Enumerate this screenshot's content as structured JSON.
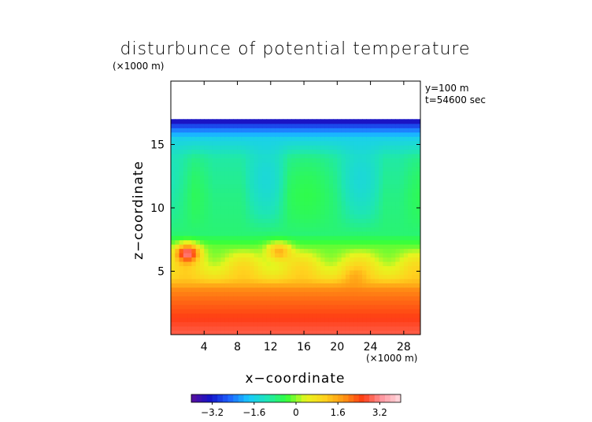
{
  "chart_data": {
    "type": "heatmap",
    "title": "disturbunce of potential temperature",
    "scale_note": "(×1000 m)",
    "annotations": [
      "y=100 m",
      "t=54600 sec"
    ],
    "xlabel": "x−coordinate",
    "ylabel": "z−coordinate",
    "x_unit_note": "(×1000 m)",
    "xlim": [
      0,
      30
    ],
    "ylim": [
      0,
      20
    ],
    "x_ticks": [
      4,
      8,
      12,
      16,
      20,
      24,
      28
    ],
    "y_ticks": [
      5,
      10,
      15
    ],
    "data_top_z": 17,
    "colorbar": {
      "range": [
        -4,
        4
      ],
      "ticks": [
        "−3.2",
        "−1.6",
        "0",
        "1.6",
        "3.2"
      ],
      "tick_values": [
        -3.2,
        -1.6,
        0,
        1.6,
        3.2
      ],
      "colors": [
        "#5a0f9c",
        "#1414c8",
        "#1e64ff",
        "#19c8ff",
        "#1ee6b4",
        "#32ff3c",
        "#e6f51e",
        "#ffd21e",
        "#ff9614",
        "#ff3c14",
        "#ff96a0",
        "#ffdce1"
      ]
    },
    "profile": [
      {
        "z": 0.2,
        "value": 2.8
      },
      {
        "z": 1.5,
        "value": 2.5
      },
      {
        "z": 3.0,
        "value": 2.1
      },
      {
        "z": 3.6,
        "value": 1.9
      },
      {
        "z": 4.5,
        "value": 1.0
      },
      {
        "z": 5.5,
        "value": 0.6
      },
      {
        "z": 6.5,
        "value": 0.1
      },
      {
        "z": 8.0,
        "value": -0.7
      },
      {
        "z": 11.0,
        "value": -0.8
      },
      {
        "z": 14.0,
        "value": -1.0
      },
      {
        "z": 15.5,
        "value": -1.6
      },
      {
        "z": 16.3,
        "value": -2.5
      },
      {
        "z": 17.0,
        "value": -3.6
      }
    ],
    "features": [
      {
        "x": 2.0,
        "z": 6.5,
        "value": 3.0
      },
      {
        "x": 13.0,
        "z": 6.6,
        "value": 1.6
      },
      {
        "x": 22.0,
        "z": 4.6,
        "value": 1.4
      }
    ]
  }
}
